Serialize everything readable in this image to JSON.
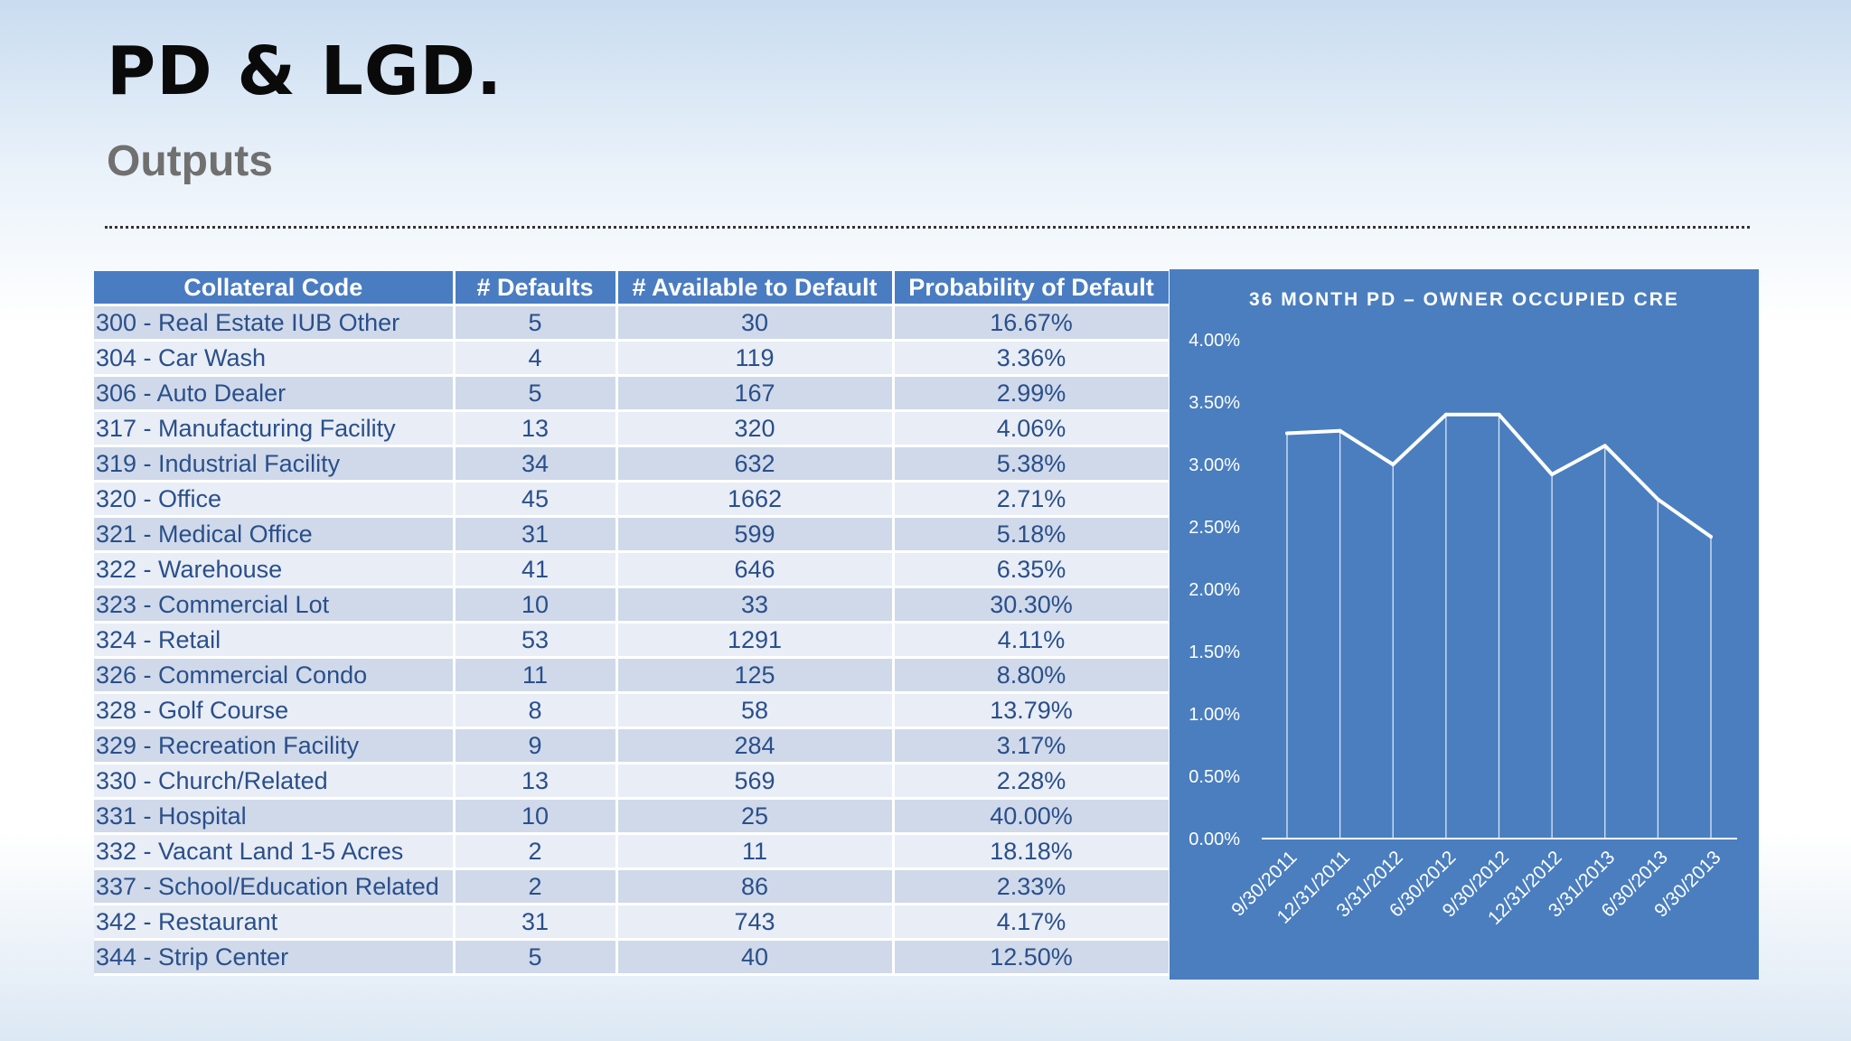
{
  "header": {
    "title": "PD & LGD.",
    "subtitle": "Outputs"
  },
  "table": {
    "columns": [
      "Collateral Code",
      "# Defaults",
      "# Available to Default",
      "Probability of Default"
    ],
    "rows": [
      [
        "300 - Real Estate IUB Other",
        "5",
        "30",
        "16.67%"
      ],
      [
        "304 - Car Wash",
        "4",
        "119",
        "3.36%"
      ],
      [
        "306 - Auto Dealer",
        "5",
        "167",
        "2.99%"
      ],
      [
        "317 - Manufacturing Facility",
        "13",
        "320",
        "4.06%"
      ],
      [
        "319 - Industrial Facility",
        "34",
        "632",
        "5.38%"
      ],
      [
        "320 - Office",
        "45",
        "1662",
        "2.71%"
      ],
      [
        "321 - Medical Office",
        "31",
        "599",
        "5.18%"
      ],
      [
        "322 - Warehouse",
        "41",
        "646",
        "6.35%"
      ],
      [
        "323 - Commercial Lot",
        "10",
        "33",
        "30.30%"
      ],
      [
        "324 - Retail",
        "53",
        "1291",
        "4.11%"
      ],
      [
        "326 - Commercial Condo",
        "11",
        "125",
        "8.80%"
      ],
      [
        "328 - Golf Course",
        "8",
        "58",
        "13.79%"
      ],
      [
        "329 - Recreation Facility",
        "9",
        "284",
        "3.17%"
      ],
      [
        "330 - Church/Related",
        "13",
        "569",
        "2.28%"
      ],
      [
        "331 - Hospital",
        "10",
        "25",
        "40.00%"
      ],
      [
        "332 - Vacant Land 1-5 Acres",
        "2",
        "11",
        "18.18%"
      ],
      [
        "337 - School/Education Related",
        "2",
        "86",
        "2.33%"
      ],
      [
        "342 - Restaurant",
        "31",
        "743",
        "4.17%"
      ],
      [
        "344 - Strip Center",
        "5",
        "40",
        "12.50%"
      ]
    ]
  },
  "chart_data": {
    "type": "line",
    "title": "36 MONTH PD – OWNER OCCUPIED CRE",
    "xlabel": "",
    "ylabel": "",
    "categories": [
      "9/30/2011",
      "12/31/2011",
      "3/31/2012",
      "6/30/2012",
      "9/30/2012",
      "12/31/2012",
      "3/31/2013",
      "6/30/2013",
      "9/30/2013"
    ],
    "series": [
      {
        "values": [
          0.0325,
          0.0327,
          0.03,
          0.034,
          0.034,
          0.0292,
          0.0315,
          0.0272,
          0.0242
        ]
      }
    ],
    "yticks": [
      "0.00%",
      "0.50%",
      "1.00%",
      "1.50%",
      "2.00%",
      "2.50%",
      "3.00%",
      "3.50%",
      "4.00%"
    ],
    "ylim": [
      0,
      0.04
    ],
    "grid": false,
    "drop_lines": true,
    "legend": "none",
    "background_color": "#4a7ebf",
    "line_color": "#ffffff"
  }
}
